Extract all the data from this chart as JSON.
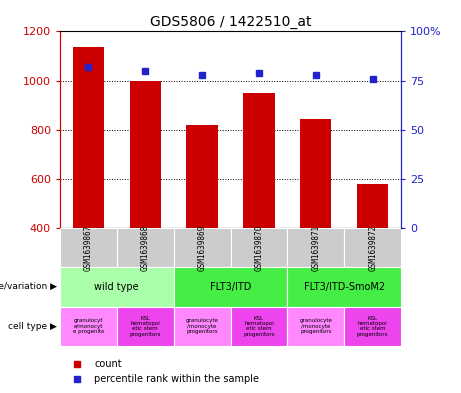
{
  "title": "GDS5806 / 1422510_at",
  "samples": [
    "GSM1639867",
    "GSM1639868",
    "GSM1639869",
    "GSM1639870",
    "GSM1639871",
    "GSM1639872"
  ],
  "counts": [
    1135,
    1000,
    820,
    950,
    845,
    580
  ],
  "percentile_ranks": [
    82,
    80,
    78,
    79,
    78,
    76
  ],
  "ylim_left": [
    400,
    1200
  ],
  "ylim_right": [
    0,
    100
  ],
  "yticks_left": [
    400,
    600,
    800,
    1000,
    1200
  ],
  "yticks_right": [
    0,
    25,
    50,
    75,
    100
  ],
  "bar_color": "#cc0000",
  "dot_color": "#2222cc",
  "grid_color": "#000000",
  "bar_width": 0.55,
  "left_label_color": "#cc0000",
  "right_label_color": "#2222cc",
  "background_color": "#ffffff",
  "plot_bg_color": "#ffffff",
  "sample_box_color": "#cccccc",
  "geno_groups": [
    {
      "label": "wild type",
      "start": 0,
      "end": 2,
      "color": "#aaffaa"
    },
    {
      "label": "FLT3/ITD",
      "start": 2,
      "end": 4,
      "color": "#44ee44"
    },
    {
      "label": "FLT3/ITD-SmoM2",
      "start": 4,
      "end": 6,
      "color": "#44ee44"
    }
  ],
  "cell_type_labels": [
    "granulocyt\ne/monocyt\ne progenito",
    "KSL\nhematopoi\netic stem\nprogenitors",
    "granulocyte\n/monocyte\nprogenitors",
    "KSL\nhematopoi\netic stem\nprogenitors",
    "granulocyte\n/monocyte\nprogenitors",
    "KSL\nhematopoi\netic stem\nprogenitors"
  ],
  "cell_type_colors": [
    "#ff88ff",
    "#ee44ee",
    "#ff88ff",
    "#ee44ee",
    "#ff88ff",
    "#ee44ee"
  ],
  "legend_bar_color": "#cc0000",
  "legend_dot_color": "#2222cc"
}
